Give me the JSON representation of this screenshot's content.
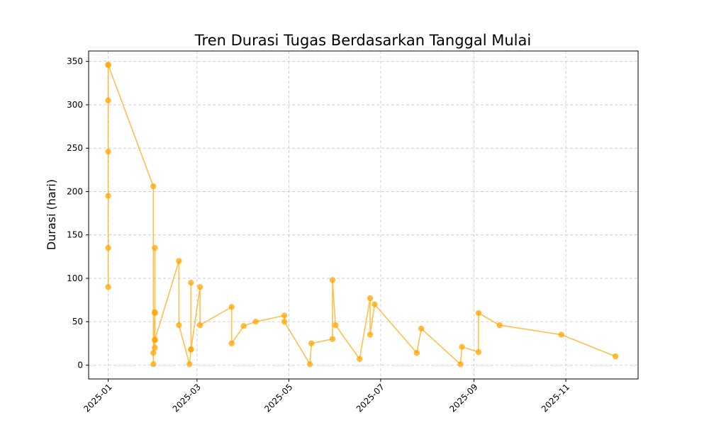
{
  "chart_data": {
    "type": "line",
    "title": "Tren Durasi Tugas Berdasarkan Tanggal Mulai",
    "xlabel": "",
    "ylabel": "Durasi (hari)",
    "x_tick_labels": [
      "2025-01",
      "2025-03",
      "2025-05",
      "2025-07",
      "2025-09",
      "2025-11"
    ],
    "y_tick_labels": [
      "0",
      "50",
      "100",
      "150",
      "200",
      "250",
      "300",
      "350"
    ],
    "ylim": [
      -16,
      362
    ],
    "xlim": [
      "2024-12-19",
      "2025-12-19"
    ],
    "grid": true,
    "line_color": "#FFA500",
    "series": [
      {
        "name": "",
        "x": [
          "2025-01-01",
          "2025-01-01",
          "2025-01-01",
          "2025-01-01",
          "2025-01-01",
          "2025-01-01",
          "2025-01-01",
          "2025-01-31",
          "2025-01-31",
          "2025-01-31",
          "2025-02-01",
          "2025-02-01",
          "2025-02-01",
          "2025-02-01",
          "2025-02-01",
          "2025-02-01",
          "2025-02-17",
          "2025-02-17",
          "2025-02-24",
          "2025-02-25",
          "2025-02-25",
          "2025-02-25",
          "2025-03-03",
          "2025-03-03",
          "2025-03-24",
          "2025-03-24",
          "2025-04-01",
          "2025-04-09",
          "2025-04-28",
          "2025-04-28",
          "2025-05-15",
          "2025-05-16",
          "2025-05-30",
          "2025-05-30",
          "2025-06-01",
          "2025-06-17",
          "2025-06-24",
          "2025-06-24",
          "2025-06-27",
          "2025-07-25",
          "2025-07-28",
          "2025-08-23",
          "2025-08-24",
          "2025-09-04",
          "2025-09-04",
          "2025-09-18",
          "2025-10-29",
          "2025-12-04"
        ],
        "y": [
          346,
          305,
          246,
          195,
          135,
          90,
          346,
          206,
          1,
          14,
          61,
          20,
          29,
          135,
          60,
          29,
          120,
          46,
          1,
          18,
          95,
          18,
          90,
          46,
          67,
          25,
          45,
          50,
          57,
          50,
          1,
          25,
          30,
          98,
          46,
          7,
          77,
          35,
          70,
          14,
          42,
          1,
          21,
          15,
          60,
          46,
          35,
          10
        ]
      }
    ]
  }
}
